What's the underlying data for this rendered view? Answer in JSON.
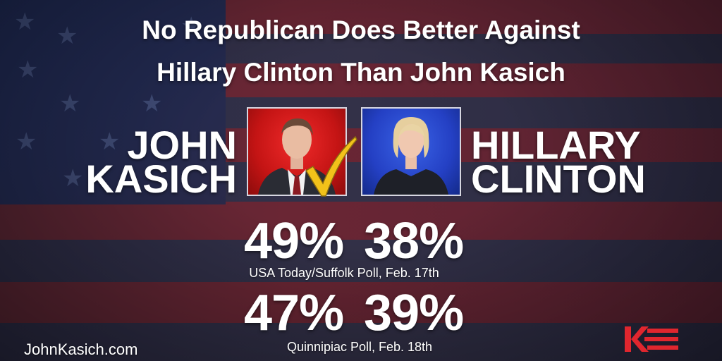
{
  "title": {
    "line1": "No Republican Does Better Against",
    "line2": "Hillary Clinton Than John Kasich"
  },
  "candidates": {
    "left": {
      "first": "JOHN",
      "last": "KASICH",
      "photo_bg": "#d01a1a"
    },
    "right": {
      "first": "HILLARY",
      "last": "CLINTON",
      "photo_bg": "#2a48d0"
    }
  },
  "polls": [
    {
      "kasich": "49%",
      "clinton": "38%",
      "source": "USA Today/Suffolk Poll, Feb. 17th"
    },
    {
      "kasich": "47%",
      "clinton": "39%",
      "source": "Quinnipiac Poll, Feb. 18th"
    }
  ],
  "footer": {
    "website": "JohnKasich.com"
  },
  "colors": {
    "accent_red": "#e0262e",
    "check_gold": "#f2c21a"
  },
  "icons": {
    "winner": "checkmark-icon",
    "brand": "kasich-logo-icon"
  }
}
